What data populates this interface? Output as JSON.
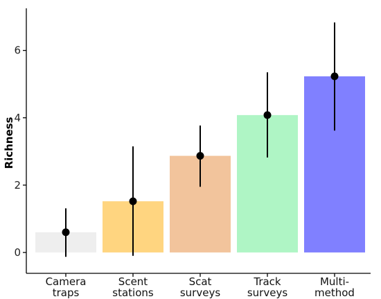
{
  "chart_data": {
    "type": "bar",
    "categories": [
      [
        "Camera",
        "traps"
      ],
      [
        "Scent",
        "stations"
      ],
      [
        "Scat",
        "surveys"
      ],
      [
        "Track",
        "surveys"
      ],
      [
        "Multi-",
        "method"
      ]
    ],
    "values": [
      0.6,
      1.52,
      2.87,
      4.08,
      5.23
    ],
    "error_lower": [
      -0.13,
      -0.1,
      1.95,
      2.82,
      3.62
    ],
    "error_upper": [
      1.31,
      3.15,
      3.77,
      5.35,
      6.83
    ],
    "colors": [
      "#eeeeee",
      "#ffd580",
      "#f2c49c",
      "#aff5c5",
      "#8080ff"
    ],
    "xlabel": "",
    "ylabel": "Richness",
    "ylim": [
      -0.62,
      7.25
    ],
    "yticks": [
      0,
      2,
      4,
      6
    ],
    "grid": false
  }
}
